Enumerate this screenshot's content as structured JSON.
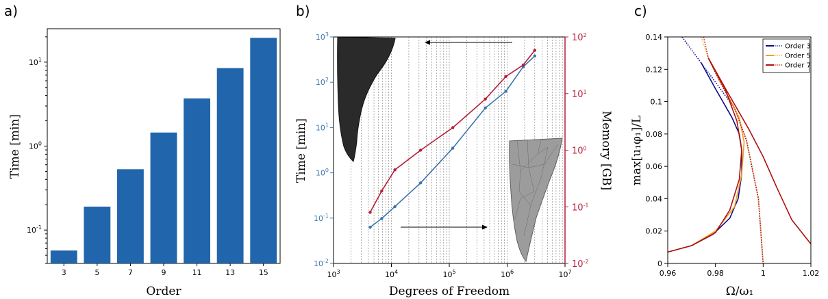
{
  "panels": {
    "a": "a)",
    "b": "b)",
    "c": "c)"
  },
  "colors": {
    "bar": "#2166ac",
    "blue_series": "#3a74ad",
    "red_series": "#b51d3a",
    "order3": "#0c0c8c",
    "order5": "#f2a020",
    "order7": "#b01010"
  },
  "chart_data": [
    {
      "type": "bar",
      "categories": [
        "3",
        "5",
        "7",
        "9",
        "11",
        "13",
        "15"
      ],
      "values": [
        0.057,
        0.19,
        0.53,
        1.45,
        3.7,
        8.5,
        19.5
      ],
      "xlabel": "Order",
      "ylabel": "Time [min]",
      "yscale": "log",
      "ylim": [
        0.04,
        25
      ],
      "yticks": [
        "10^{-1}",
        "10^{0}",
        "10^{1}"
      ],
      "xticks": [
        "3",
        "5",
        "7",
        "9",
        "11",
        "13",
        "15"
      ]
    },
    {
      "type": "line",
      "xlabel": "Degrees of Freedom",
      "ylabel_left": "Time [min]",
      "ylabel_right": "Memory [GB]",
      "xscale": "log",
      "xlim": [
        1000,
        10000000
      ],
      "xticks": [
        "10^{3}",
        "10^{4}",
        "10^{5}",
        "10^{6}",
        "10^{7}"
      ],
      "ylim_left": [
        0.01,
        1000
      ],
      "yticks_left": [
        "10^{-2}",
        "10^{-1}",
        "10^{0}",
        "10^{1}",
        "10^{2}",
        "10^{3}"
      ],
      "ylim_right": [
        0.01,
        100
      ],
      "yticks_right": [
        "10^{-2}",
        "10^{-1}",
        "10^{0}",
        "10^{1}",
        "10^{2}"
      ],
      "grid": "vertical",
      "series": [
        {
          "axis": "left",
          "x": [
            4300,
            6800,
            11500,
            32000,
            115000,
            420000,
            950000,
            1900000,
            3000000
          ],
          "y": [
            0.063,
            0.098,
            0.18,
            0.6,
            3.5,
            27,
            63,
            220,
            380
          ]
        },
        {
          "axis": "right",
          "x": [
            4300,
            6800,
            11500,
            32000,
            115000,
            420000,
            950000,
            1900000,
            3000000
          ],
          "y": [
            0.08,
            0.19,
            0.45,
            1.0,
            2.5,
            8.0,
            20,
            32,
            58
          ]
        }
      ]
    },
    {
      "type": "line",
      "xlabel": "Ω/ω₁",
      "ylabel": "max[u₁φ₁]/L",
      "xlim": [
        0.96,
        1.02
      ],
      "ylim": [
        0,
        0.14
      ],
      "xticks": [
        "0.96",
        "0.98",
        "1",
        "1.02"
      ],
      "yticks": [
        "0",
        "0.02",
        "0.04",
        "0.06",
        "0.08",
        "0.1",
        "0.12",
        "0.14"
      ],
      "legend": "top-right",
      "series": [
        {
          "name": "Order 3",
          "color_key": "order3",
          "style": "solid",
          "x": [
            0.974,
            0.98,
            0.987,
            0.99,
            0.991,
            0.991,
            0.9895,
            0.986,
            0.979,
            0.97,
            0.96
          ],
          "y": [
            0.124,
            0.108,
            0.09,
            0.08,
            0.07,
            0.055,
            0.04,
            0.028,
            0.018,
            0.011,
            0.007
          ]
        },
        {
          "name": "Order 3",
          "color_key": "order3",
          "style": "dotted",
          "x": [
            0.966,
            0.97,
            0.974,
            0.98,
            0.988,
            0.993,
            0.998,
            1.0
          ],
          "y": [
            0.14,
            0.132,
            0.124,
            0.112,
            0.096,
            0.076,
            0.04,
            0.0
          ]
        },
        {
          "name": "Order 5",
          "color_key": "order5",
          "style": "solid",
          "x": [
            0.977,
            0.983,
            0.99,
            0.992,
            0.991,
            0.988,
            0.98,
            0.97,
            0.96
          ],
          "y": [
            0.127,
            0.11,
            0.09,
            0.075,
            0.055,
            0.035,
            0.02,
            0.011,
            0.007
          ]
        },
        {
          "name": "Order 5",
          "color_key": "order5",
          "style": "dotted",
          "x": [
            0.974,
            0.977,
            0.982,
            0.988,
            0.993,
            0.998,
            1.0
          ],
          "y": [
            0.14,
            0.127,
            0.112,
            0.096,
            0.076,
            0.04,
            0.0
          ]
        },
        {
          "name": "Order 7",
          "color_key": "order7",
          "style": "solid",
          "x": [
            0.977,
            0.985,
            0.994,
            1.0,
            1.006,
            1.012,
            1.02
          ],
          "y": [
            0.127,
            0.106,
            0.083,
            0.066,
            0.046,
            0.027,
            0.012
          ]
        },
        {
          "name": "Order 7",
          "color_key": "order7",
          "style": "solid",
          "x": [
            0.977,
            0.984,
            0.989,
            0.991,
            0.99,
            0.986,
            0.98,
            0.97,
            0.96
          ],
          "y": [
            0.127,
            0.108,
            0.088,
            0.07,
            0.052,
            0.033,
            0.019,
            0.011,
            0.007
          ]
        },
        {
          "name": "Order 7",
          "color_key": "order7",
          "style": "dotted",
          "x": [
            0.975,
            0.977,
            0.982,
            0.988,
            0.993,
            0.998,
            1.0
          ],
          "y": [
            0.14,
            0.127,
            0.112,
            0.096,
            0.076,
            0.04,
            0.0
          ]
        }
      ],
      "legend_entries": [
        "Order 3",
        "Order 5",
        "Order 7"
      ]
    }
  ]
}
